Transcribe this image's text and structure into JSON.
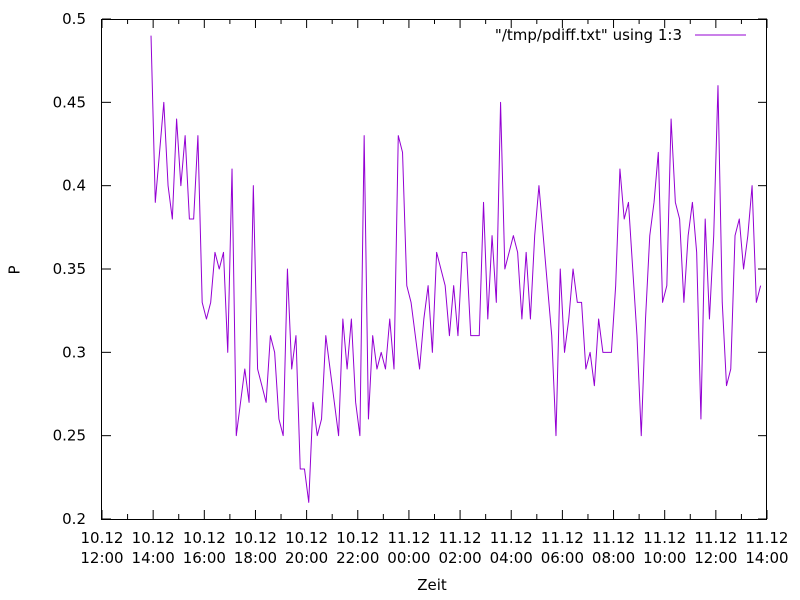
{
  "chart_data": {
    "type": "line",
    "title": "",
    "xlabel": "Zeit",
    "ylabel": "P",
    "ylim": [
      0.2,
      0.5
    ],
    "xlim": [
      "2010-12-10T12:00",
      "2010-12-11T14:00"
    ],
    "grid": false,
    "legend_position": "top-right",
    "x_tick_labels": [
      {
        "t": "2010-12-10T12:00",
        "line1": "10.12",
        "line2": "12:00"
      },
      {
        "t": "2010-12-10T14:00",
        "line1": "10.12",
        "line2": "14:00"
      },
      {
        "t": "2010-12-10T16:00",
        "line1": "10.12",
        "line2": "16:00"
      },
      {
        "t": "2010-12-10T18:00",
        "line1": "10.12",
        "line2": "18:00"
      },
      {
        "t": "2010-12-10T20:00",
        "line1": "10.12",
        "line2": "20:00"
      },
      {
        "t": "2010-12-10T22:00",
        "line1": "10.12",
        "line2": "22:00"
      },
      {
        "t": "2010-12-11T00:00",
        "line1": "11.12",
        "line2": "00:00"
      },
      {
        "t": "2010-12-11T02:00",
        "line1": "11.12",
        "line2": "02:00"
      },
      {
        "t": "2010-12-11T04:00",
        "line1": "11.12",
        "line2": "04:00"
      },
      {
        "t": "2010-12-11T06:00",
        "line1": "11.12",
        "line2": "06:00"
      },
      {
        "t": "2010-12-11T08:00",
        "line1": "11.12",
        "line2": "08:00"
      },
      {
        "t": "2010-12-11T10:00",
        "line1": "11.12",
        "line2": "10:00"
      },
      {
        "t": "2010-12-11T12:00",
        "line1": "11.12",
        "line2": "12:00"
      },
      {
        "t": "2010-12-11T14:00",
        "line1": "11.12",
        "line2": "14:00"
      }
    ],
    "y_tick_labels": [
      "0.2",
      "0.25",
      "0.3",
      "0.35",
      "0.4",
      "0.45",
      "0.5"
    ],
    "series": [
      {
        "name": "\"/tmp/pdiff.txt\"  using 1:3",
        "color": "#9400d3",
        "points": [
          [
            "2010-12-10T13:55",
            0.49
          ],
          [
            "2010-12-10T14:05",
            0.39
          ],
          [
            "2010-12-10T14:15",
            0.42
          ],
          [
            "2010-12-10T14:25",
            0.45
          ],
          [
            "2010-12-10T14:35",
            0.4
          ],
          [
            "2010-12-10T14:45",
            0.38
          ],
          [
            "2010-12-10T14:55",
            0.44
          ],
          [
            "2010-12-10T15:05",
            0.4
          ],
          [
            "2010-12-10T15:15",
            0.43
          ],
          [
            "2010-12-10T15:25",
            0.38
          ],
          [
            "2010-12-10T15:35",
            0.38
          ],
          [
            "2010-12-10T15:45",
            0.43
          ],
          [
            "2010-12-10T15:55",
            0.33
          ],
          [
            "2010-12-10T16:05",
            0.32
          ],
          [
            "2010-12-10T16:15",
            0.33
          ],
          [
            "2010-12-10T16:25",
            0.36
          ],
          [
            "2010-12-10T16:35",
            0.35
          ],
          [
            "2010-12-10T16:45",
            0.36
          ],
          [
            "2010-12-10T16:55",
            0.3
          ],
          [
            "2010-12-10T17:05",
            0.41
          ],
          [
            "2010-12-10T17:15",
            0.25
          ],
          [
            "2010-12-10T17:25",
            0.27
          ],
          [
            "2010-12-10T17:35",
            0.29
          ],
          [
            "2010-12-10T17:45",
            0.27
          ],
          [
            "2010-12-10T17:55",
            0.4
          ],
          [
            "2010-12-10T18:05",
            0.29
          ],
          [
            "2010-12-10T18:15",
            0.28
          ],
          [
            "2010-12-10T18:25",
            0.27
          ],
          [
            "2010-12-10T18:35",
            0.31
          ],
          [
            "2010-12-10T18:45",
            0.3
          ],
          [
            "2010-12-10T18:55",
            0.26
          ],
          [
            "2010-12-10T19:05",
            0.25
          ],
          [
            "2010-12-10T19:15",
            0.35
          ],
          [
            "2010-12-10T19:25",
            0.29
          ],
          [
            "2010-12-10T19:35",
            0.31
          ],
          [
            "2010-12-10T19:45",
            0.23
          ],
          [
            "2010-12-10T19:55",
            0.23
          ],
          [
            "2010-12-10T20:05",
            0.21
          ],
          [
            "2010-12-10T20:15",
            0.27
          ],
          [
            "2010-12-10T20:25",
            0.25
          ],
          [
            "2010-12-10T20:35",
            0.26
          ],
          [
            "2010-12-10T20:45",
            0.31
          ],
          [
            "2010-12-10T20:55",
            0.29
          ],
          [
            "2010-12-10T21:05",
            0.27
          ],
          [
            "2010-12-10T21:15",
            0.25
          ],
          [
            "2010-12-10T21:25",
            0.32
          ],
          [
            "2010-12-10T21:35",
            0.29
          ],
          [
            "2010-12-10T21:45",
            0.32
          ],
          [
            "2010-12-10T21:55",
            0.27
          ],
          [
            "2010-12-10T22:05",
            0.25
          ],
          [
            "2010-12-10T22:15",
            0.43
          ],
          [
            "2010-12-10T22:25",
            0.26
          ],
          [
            "2010-12-10T22:35",
            0.31
          ],
          [
            "2010-12-10T22:45",
            0.29
          ],
          [
            "2010-12-10T22:55",
            0.3
          ],
          [
            "2010-12-10T23:05",
            0.29
          ],
          [
            "2010-12-10T23:15",
            0.32
          ],
          [
            "2010-12-10T23:25",
            0.29
          ],
          [
            "2010-12-10T23:35",
            0.43
          ],
          [
            "2010-12-10T23:45",
            0.42
          ],
          [
            "2010-12-10T23:55",
            0.34
          ],
          [
            "2010-12-11T00:05",
            0.33
          ],
          [
            "2010-12-11T00:15",
            0.31
          ],
          [
            "2010-12-11T00:25",
            0.29
          ],
          [
            "2010-12-11T00:35",
            0.32
          ],
          [
            "2010-12-11T00:45",
            0.34
          ],
          [
            "2010-12-11T00:55",
            0.3
          ],
          [
            "2010-12-11T01:05",
            0.36
          ],
          [
            "2010-12-11T01:15",
            0.35
          ],
          [
            "2010-12-11T01:25",
            0.34
          ],
          [
            "2010-12-11T01:35",
            0.31
          ],
          [
            "2010-12-11T01:45",
            0.34
          ],
          [
            "2010-12-11T01:55",
            0.31
          ],
          [
            "2010-12-11T02:05",
            0.36
          ],
          [
            "2010-12-11T02:15",
            0.36
          ],
          [
            "2010-12-11T02:25",
            0.31
          ],
          [
            "2010-12-11T02:35",
            0.31
          ],
          [
            "2010-12-11T02:45",
            0.31
          ],
          [
            "2010-12-11T02:55",
            0.39
          ],
          [
            "2010-12-11T03:05",
            0.32
          ],
          [
            "2010-12-11T03:15",
            0.37
          ],
          [
            "2010-12-11T03:25",
            0.33
          ],
          [
            "2010-12-11T03:35",
            0.45
          ],
          [
            "2010-12-11T03:45",
            0.35
          ],
          [
            "2010-12-11T03:55",
            0.36
          ],
          [
            "2010-12-11T04:05",
            0.37
          ],
          [
            "2010-12-11T04:15",
            0.36
          ],
          [
            "2010-12-11T04:25",
            0.32
          ],
          [
            "2010-12-11T04:35",
            0.36
          ],
          [
            "2010-12-11T04:45",
            0.32
          ],
          [
            "2010-12-11T04:55",
            0.37
          ],
          [
            "2010-12-11T05:05",
            0.4
          ],
          [
            "2010-12-11T05:15",
            0.37
          ],
          [
            "2010-12-11T05:25",
            0.34
          ],
          [
            "2010-12-11T05:35",
            0.31
          ],
          [
            "2010-12-11T05:45",
            0.25
          ],
          [
            "2010-12-11T05:55",
            0.35
          ],
          [
            "2010-12-11T06:05",
            0.3
          ],
          [
            "2010-12-11T06:15",
            0.32
          ],
          [
            "2010-12-11T06:25",
            0.35
          ],
          [
            "2010-12-11T06:35",
            0.33
          ],
          [
            "2010-12-11T06:45",
            0.33
          ],
          [
            "2010-12-11T06:55",
            0.29
          ],
          [
            "2010-12-11T07:05",
            0.3
          ],
          [
            "2010-12-11T07:15",
            0.28
          ],
          [
            "2010-12-11T07:25",
            0.32
          ],
          [
            "2010-12-11T07:35",
            0.3
          ],
          [
            "2010-12-11T07:45",
            0.3
          ],
          [
            "2010-12-11T07:55",
            0.3
          ],
          [
            "2010-12-11T08:05",
            0.34
          ],
          [
            "2010-12-11T08:15",
            0.41
          ],
          [
            "2010-12-11T08:25",
            0.38
          ],
          [
            "2010-12-11T08:35",
            0.39
          ],
          [
            "2010-12-11T08:45",
            0.35
          ],
          [
            "2010-12-11T08:55",
            0.31
          ],
          [
            "2010-12-11T09:05",
            0.25
          ],
          [
            "2010-12-11T09:15",
            0.32
          ],
          [
            "2010-12-11T09:25",
            0.37
          ],
          [
            "2010-12-11T09:35",
            0.39
          ],
          [
            "2010-12-11T09:45",
            0.42
          ],
          [
            "2010-12-11T09:55",
            0.33
          ],
          [
            "2010-12-11T10:05",
            0.34
          ],
          [
            "2010-12-11T10:15",
            0.44
          ],
          [
            "2010-12-11T10:25",
            0.39
          ],
          [
            "2010-12-11T10:35",
            0.38
          ],
          [
            "2010-12-11T10:45",
            0.33
          ],
          [
            "2010-12-11T10:55",
            0.37
          ],
          [
            "2010-12-11T11:05",
            0.39
          ],
          [
            "2010-12-11T11:15",
            0.36
          ],
          [
            "2010-12-11T11:25",
            0.26
          ],
          [
            "2010-12-11T11:35",
            0.38
          ],
          [
            "2010-12-11T11:45",
            0.32
          ],
          [
            "2010-12-11T11:55",
            0.37
          ],
          [
            "2010-12-11T12:05",
            0.46
          ],
          [
            "2010-12-11T12:15",
            0.33
          ],
          [
            "2010-12-11T12:25",
            0.28
          ],
          [
            "2010-12-11T12:35",
            0.29
          ],
          [
            "2010-12-11T12:45",
            0.37
          ],
          [
            "2010-12-11T12:55",
            0.38
          ],
          [
            "2010-12-11T13:05",
            0.35
          ],
          [
            "2010-12-11T13:15",
            0.37
          ],
          [
            "2010-12-11T13:25",
            0.4
          ],
          [
            "2010-12-11T13:35",
            0.33
          ],
          [
            "2010-12-11T13:45",
            0.34
          ]
        ]
      }
    ]
  }
}
